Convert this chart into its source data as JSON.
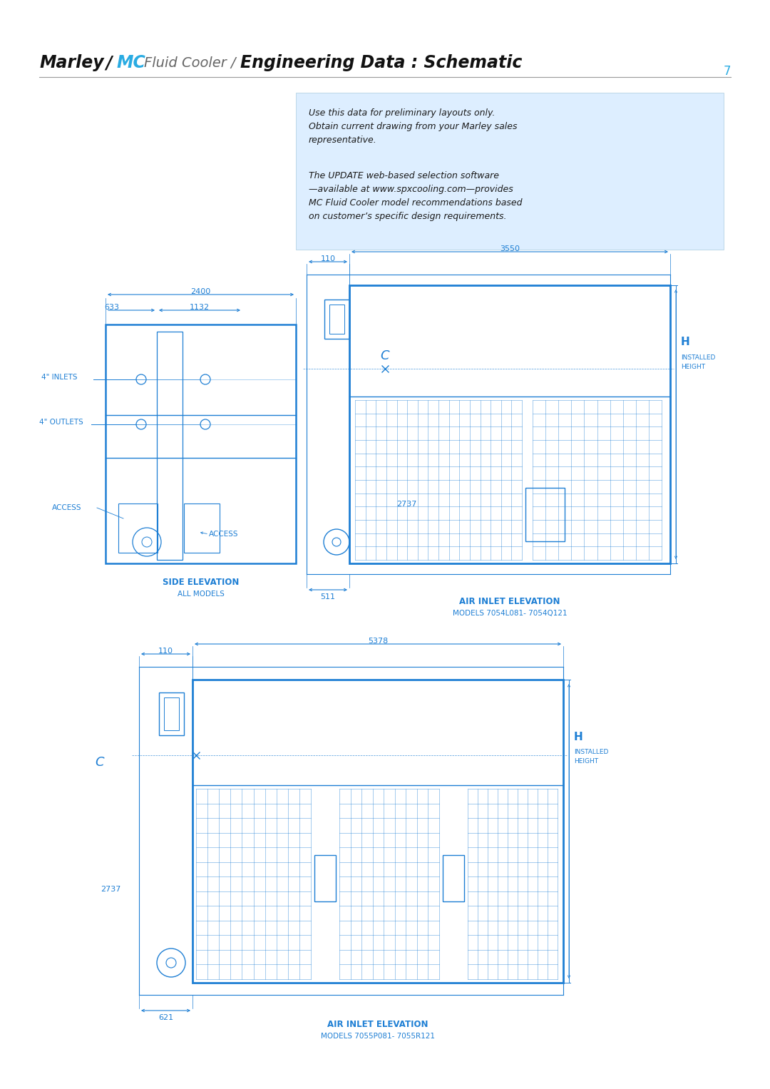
{
  "blue": "#1e7fd4",
  "text_blue": "#1e7fd4",
  "light_blue_bg": "#ddeeff",
  "header_black": "#111111",
  "header_gray": "#666666",
  "header_cyan": "#29abe2",
  "page_num": "7",
  "info_text1": "Use this data for preliminary layouts only.\nObtain current drawing from your Marley sales\nrepresentative.",
  "info_text2": "The UPDATE web-based selection software\n—available at www.spxcooling.com—provides\nMC Fluid Cooler model recommendations based\non customer’s specific design requirements.",
  "caption_top_left": "SIDE ELEVATION",
  "caption_top_left2": "ALL MODELS",
  "caption_top_right": "AIR INLET ELEVATION",
  "caption_top_right2": "MODELS 7054L081- 7054Q121",
  "caption_bot": "AIR INLET ELEVATION",
  "caption_bot2": "MODELS 7055P081- 7055R121",
  "dim_2400": "2400",
  "dim_633": "633",
  "dim_1132": "1132",
  "dim_110_top": "110",
  "dim_3550": "3550",
  "dim_511": "511",
  "dim_2737_top": "2737",
  "dim_110_bot": "110",
  "dim_5378": "5378",
  "dim_621": "621",
  "dim_2737_bot": "2737",
  "label_inlets": "4\" INLETS",
  "label_outlets": "4\" OUTLETS",
  "label_access1": "ACCESS",
  "label_access2": "ACCESS",
  "label_C_top": "C",
  "label_C_bot": "C",
  "label_H_top": "H",
  "label_H_bot": "H",
  "label_installed": "INSTALLED\nHEIGHT"
}
